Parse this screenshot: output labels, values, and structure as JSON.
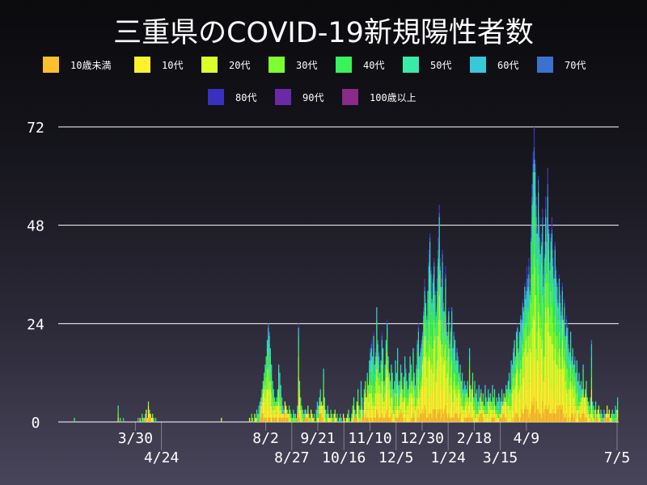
{
  "chart_data": {
    "type": "bar",
    "stacked": true,
    "title": "三重県のCOVID-19新規陽性者数",
    "xlabel": "",
    "ylabel": "",
    "ylim": [
      0,
      72
    ],
    "yticks": [
      "0",
      "24",
      "48",
      "72"
    ],
    "xticks": [
      "3/30",
      "4/24",
      "8/2",
      "8/27",
      "9/21",
      "10/16",
      "11/10",
      "12/5",
      "12/30",
      "1/24",
      "2/18",
      "3/15",
      "4/9",
      "7/5"
    ],
    "xtick_dates": [
      "2020-03-30",
      "2020-04-24",
      "2020-08-02",
      "2020-08-27",
      "2020-09-21",
      "2020-10-16",
      "2020-11-10",
      "2020-12-05",
      "2020-12-30",
      "2021-01-24",
      "2021-02-18",
      "2021-03-15",
      "2021-04-09",
      "2021-07-05"
    ],
    "x_range": [
      "2020-01-16",
      "2021-07-05"
    ],
    "grid": "horizontal",
    "legend_position": "top",
    "series": [
      {
        "name": "10歳未満",
        "color": "#ffbe2b"
      },
      {
        "name": "10代",
        "color": "#fff22c"
      },
      {
        "name": "20代",
        "color": "#dcff2c"
      },
      {
        "name": "30代",
        "color": "#7cff30"
      },
      {
        "name": "40代",
        "color": "#38f45a"
      },
      {
        "name": "50代",
        "color": "#3aeaa8"
      },
      {
        "name": "60代",
        "color": "#38c8dc"
      },
      {
        "name": "70代",
        "color": "#3a72d0"
      },
      {
        "name": "80代",
        "color": "#3a30c0"
      },
      {
        "name": "90代",
        "color": "#6a2aa8"
      },
      {
        "name": "100歳以上",
        "color": "#8a2a8a"
      }
    ],
    "daily_totals": [
      0,
      0,
      0,
      0,
      0,
      0,
      0,
      0,
      0,
      0,
      0,
      0,
      0,
      0,
      0,
      1,
      0,
      0,
      0,
      0,
      0,
      0,
      0,
      0,
      0,
      0,
      0,
      0,
      0,
      0,
      0,
      0,
      0,
      0,
      0,
      0,
      0,
      0,
      0,
      0,
      0,
      0,
      0,
      0,
      0,
      0,
      0,
      0,
      0,
      0,
      0,
      0,
      0,
      0,
      0,
      0,
      0,
      4,
      0,
      1,
      0,
      0,
      1,
      0,
      0,
      0,
      0,
      0,
      0,
      0,
      0,
      0,
      0,
      0,
      0,
      0,
      1,
      0,
      1,
      0,
      2,
      1,
      1,
      2,
      3,
      1,
      5,
      3,
      2,
      1,
      2,
      1,
      0,
      1,
      0,
      0,
      0,
      0,
      0,
      0,
      0,
      0,
      0,
      0,
      0,
      0,
      0,
      0,
      0,
      0,
      0,
      0,
      0,
      0,
      0,
      0,
      0,
      0,
      0,
      0,
      0,
      0,
      0,
      0,
      0,
      0,
      0,
      0,
      0,
      0,
      0,
      0,
      0,
      0,
      0,
      0,
      0,
      0,
      0,
      0,
      0,
      0,
      0,
      0,
      0,
      0,
      0,
      0,
      0,
      0,
      0,
      0,
      0,
      0,
      0,
      0,
      1,
      0,
      0,
      0,
      0,
      0,
      0,
      0,
      0,
      0,
      0,
      0,
      0,
      0,
      0,
      0,
      0,
      0,
      0,
      0,
      0,
      0,
      0,
      0,
      0,
      0,
      0,
      1,
      0,
      2,
      1,
      0,
      2,
      1,
      3,
      2,
      4,
      5,
      6,
      8,
      10,
      12,
      14,
      16,
      20,
      24,
      22,
      18,
      14,
      10,
      8,
      6,
      5,
      6,
      8,
      14,
      12,
      9,
      6,
      4,
      3,
      5,
      4,
      3,
      2,
      4,
      3,
      2,
      1,
      3,
      2,
      2,
      1,
      4,
      24,
      10,
      6,
      4,
      3,
      2,
      3,
      3,
      2,
      4,
      2,
      1,
      3,
      2,
      1,
      2,
      0,
      3,
      5,
      4,
      6,
      8,
      5,
      4,
      13,
      6,
      3,
      2,
      4,
      2,
      1,
      3,
      2,
      1,
      2,
      3,
      1,
      2,
      0,
      1,
      2,
      1,
      0,
      2,
      1,
      0,
      1,
      2,
      3,
      1,
      0,
      2,
      4,
      6,
      3,
      2,
      5,
      8,
      4,
      3,
      10,
      6,
      3,
      8,
      10,
      6,
      12,
      9,
      15,
      18,
      20,
      16,
      22,
      14,
      18,
      28,
      20,
      17,
      12,
      15,
      22,
      18,
      10,
      14,
      20,
      25,
      16,
      12,
      10,
      14,
      12,
      8,
      10,
      15,
      12,
      18,
      9,
      10,
      14,
      12,
      8,
      11,
      16,
      13,
      10,
      8,
      12,
      16,
      14,
      10,
      18,
      12,
      9,
      14,
      20,
      24,
      16,
      18,
      20,
      22,
      28,
      35,
      30,
      26,
      32,
      42,
      46,
      38,
      30,
      36,
      40,
      33,
      28,
      38,
      45,
      53,
      40,
      35,
      42,
      30,
      28,
      38,
      25,
      22,
      28,
      20,
      24,
      28,
      18,
      22,
      20,
      15,
      18,
      16,
      12,
      14,
      10,
      12,
      8,
      10,
      9,
      8,
      10,
      6,
      18,
      9,
      8,
      12,
      6,
      10,
      7,
      8,
      5,
      9,
      6,
      8,
      5,
      7,
      4,
      9,
      6,
      5,
      8,
      6,
      7,
      5,
      9,
      6,
      8,
      4,
      6,
      5,
      7,
      6,
      5,
      8,
      5,
      7,
      6,
      9,
      8,
      10,
      12,
      8,
      15,
      14,
      18,
      20,
      16,
      22,
      24,
      18,
      22,
      26,
      25,
      30,
      28,
      34,
      32,
      38,
      36,
      40,
      35,
      48,
      58,
      66,
      72,
      64,
      55,
      48,
      60,
      50,
      42,
      46,
      52,
      38,
      44,
      55,
      50,
      62,
      48,
      40,
      46,
      50,
      42,
      36,
      44,
      38,
      34,
      30,
      36,
      32,
      28,
      34,
      26,
      30,
      22,
      26,
      24,
      20,
      18,
      22,
      16,
      18,
      14,
      16,
      12,
      15,
      10,
      12,
      9,
      10,
      8,
      14,
      6,
      8,
      10,
      6,
      5,
      4,
      6,
      20,
      5,
      4,
      3,
      5,
      2,
      3,
      4,
      2,
      3,
      2,
      1,
      3,
      2,
      2,
      4,
      2,
      3,
      1,
      2,
      3,
      2,
      2,
      4,
      3,
      6
    ]
  }
}
